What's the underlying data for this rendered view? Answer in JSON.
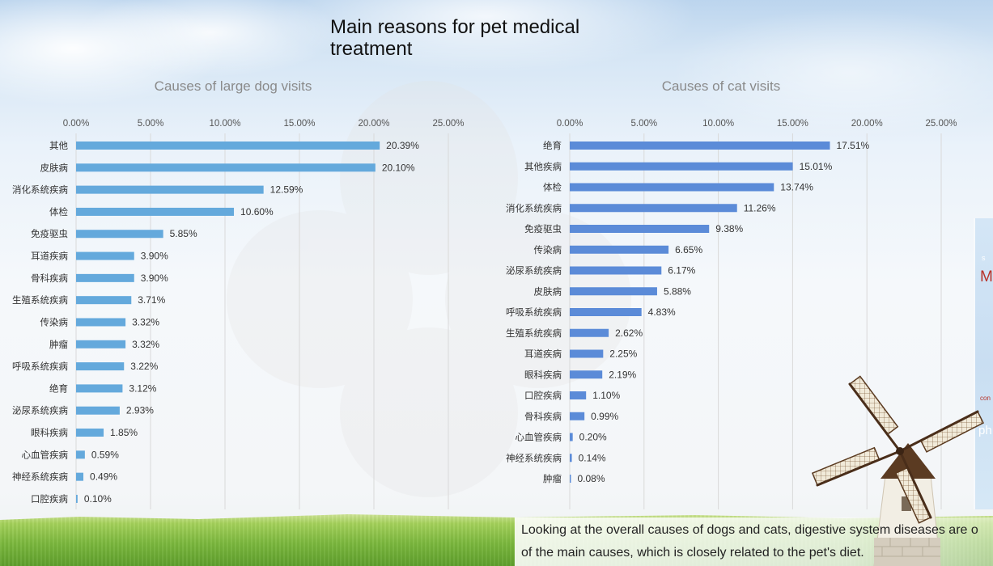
{
  "slide": {
    "title": "Main reasons for pet medical treatment",
    "summary_lines": [
      "Looking at the overall causes of dogs and cats, digestive system diseases are o",
      "of the main causes, which is closely related to the pet's diet."
    ]
  },
  "side_panel": {
    "fragments": [
      "s",
      "M",
      "con",
      "ph"
    ]
  },
  "chart_data": [
    {
      "type": "bar",
      "title": "Causes of large dog visits",
      "xlim": [
        0,
        25
      ],
      "xticks": [
        "0.00%",
        "5.00%",
        "10.00%",
        "15.00%",
        "20.00%",
        "25.00%"
      ],
      "grid": true,
      "color": "#64a9dc",
      "categories": [
        "其他",
        "皮肤病",
        "消化系统疾病",
        "体检",
        "免疫驱虫",
        "耳道疾病",
        "骨科疾病",
        "生殖系统疾病",
        "传染病",
        "肿瘤",
        "呼吸系统疾病",
        "绝育",
        "泌尿系统疾病",
        "眼科疾病",
        "心血管疾病",
        "神经系统疾病",
        "口腔疾病"
      ],
      "values": [
        20.39,
        20.1,
        12.59,
        10.6,
        5.85,
        3.9,
        3.9,
        3.71,
        3.32,
        3.32,
        3.22,
        3.12,
        2.93,
        1.85,
        0.59,
        0.49,
        0.1
      ],
      "value_labels": [
        "20.39%",
        "20.10%",
        "12.59%",
        "10.60%",
        "5.85%",
        "3.90%",
        "3.90%",
        "3.71%",
        "3.32%",
        "3.32%",
        "3.22%",
        "3.12%",
        "2.93%",
        "1.85%",
        "0.59%",
        "0.49%",
        "0.10%"
      ]
    },
    {
      "type": "bar",
      "title": "Causes of cat visits",
      "xlim": [
        0,
        25
      ],
      "xticks": [
        "0.00%",
        "5.00%",
        "10.00%",
        "15.00%",
        "20.00%",
        "25.00%"
      ],
      "grid": true,
      "color": "#5b8bd8",
      "categories": [
        "绝育",
        "其他疾病",
        "体检",
        "消化系统疾病",
        "免疫驱虫",
        "传染病",
        "泌尿系统疾病",
        "皮肤病",
        "呼吸系统疾病",
        "生殖系统疾病",
        "耳道疾病",
        "眼科疾病",
        "口腔疾病",
        "骨科疾病",
        "心血管疾病",
        "神经系统疾病",
        "肿瘤"
      ],
      "values": [
        17.51,
        15.01,
        13.74,
        11.26,
        9.38,
        6.65,
        6.17,
        5.88,
        4.83,
        2.62,
        2.25,
        2.19,
        1.1,
        0.99,
        0.2,
        0.14,
        0.08
      ],
      "value_labels": [
        "17.51%",
        "15.01%",
        "13.74%",
        "11.26%",
        "9.38%",
        "6.65%",
        "6.17%",
        "5.88%",
        "4.83%",
        "2.62%",
        "2.25%",
        "2.19%",
        "1.10%",
        "0.99%",
        "0.20%",
        "0.14%",
        "0.08%"
      ]
    }
  ]
}
